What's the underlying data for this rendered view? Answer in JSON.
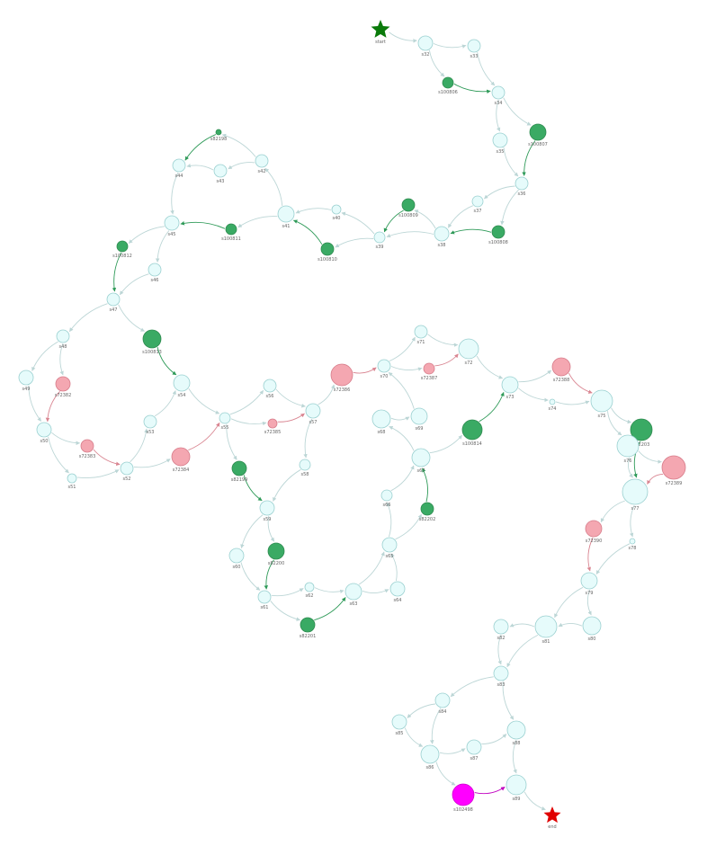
{
  "colors": {
    "state": "#e6fbfb",
    "state_stroke": "#9ad0d0",
    "green": "#3aaa64",
    "green_stroke": "#2e8a4f",
    "pink": "#f4a7b1",
    "pink_stroke": "#d77c8a",
    "magenta": "#ff00ff",
    "start_star": "#0a7a0a",
    "end_star": "#e00000",
    "edge_default": "#bcd6d6",
    "edge_green": "#2e9a58",
    "edge_pink": "#d98591",
    "edge_magenta": "#c000c0"
  },
  "nodes": [
    {
      "id": "start",
      "label": "start",
      "type": "start-star"
    },
    {
      "id": "s32",
      "label": "s32",
      "type": "state"
    },
    {
      "id": "s33",
      "label": "s33",
      "type": "state"
    },
    {
      "id": "s100806",
      "label": "s100806",
      "type": "green"
    },
    {
      "id": "s34",
      "label": "s34",
      "type": "state"
    },
    {
      "id": "s35",
      "label": "s35",
      "type": "state"
    },
    {
      "id": "s100807",
      "label": "s100807",
      "type": "green"
    },
    {
      "id": "s36",
      "label": "s36",
      "type": "state"
    },
    {
      "id": "s37",
      "label": "s37",
      "type": "state"
    },
    {
      "id": "s100808",
      "label": "s100808",
      "type": "green"
    },
    {
      "id": "s38",
      "label": "s38",
      "type": "state"
    },
    {
      "id": "s100809",
      "label": "s100809",
      "type": "green"
    },
    {
      "id": "s39",
      "label": "s39",
      "type": "state"
    },
    {
      "id": "s40",
      "label": "s40",
      "type": "state"
    },
    {
      "id": "s100810",
      "label": "s100810",
      "type": "green"
    },
    {
      "id": "s41",
      "label": "s41",
      "type": "state"
    },
    {
      "id": "s42",
      "label": "s42",
      "type": "state"
    },
    {
      "id": "s82198",
      "label": "s82198",
      "type": "green"
    },
    {
      "id": "s43",
      "label": "s43",
      "type": "state"
    },
    {
      "id": "s44",
      "label": "s44",
      "type": "state"
    },
    {
      "id": "s100811",
      "label": "s100811",
      "type": "green"
    },
    {
      "id": "s45",
      "label": "s45",
      "type": "state"
    },
    {
      "id": "s100812",
      "label": "s100812",
      "type": "green"
    },
    {
      "id": "s46",
      "label": "s46",
      "type": "state"
    },
    {
      "id": "s47",
      "label": "s47",
      "type": "state"
    },
    {
      "id": "s48",
      "label": "s48",
      "type": "state"
    },
    {
      "id": "s49",
      "label": "s49",
      "type": "state"
    },
    {
      "id": "s72382",
      "label": "s72382",
      "type": "pink"
    },
    {
      "id": "s100813",
      "label": "s100813",
      "type": "green"
    },
    {
      "id": "s50",
      "label": "s50",
      "type": "state"
    },
    {
      "id": "s72383",
      "label": "s72383",
      "type": "pink"
    },
    {
      "id": "s51",
      "label": "s51",
      "type": "state"
    },
    {
      "id": "s52",
      "label": "s52",
      "type": "state"
    },
    {
      "id": "s53",
      "label": "s53",
      "type": "state"
    },
    {
      "id": "s54",
      "label": "s54",
      "type": "state"
    },
    {
      "id": "s72384",
      "label": "s72384",
      "type": "pink"
    },
    {
      "id": "s55",
      "label": "s55",
      "type": "state"
    },
    {
      "id": "s56",
      "label": "s56",
      "type": "state"
    },
    {
      "id": "s72385",
      "label": "s72385",
      "type": "pink"
    },
    {
      "id": "s57",
      "label": "s57",
      "type": "state"
    },
    {
      "id": "s72386",
      "label": "s72386",
      "type": "pink"
    },
    {
      "id": "s58",
      "label": "s58",
      "type": "state"
    },
    {
      "id": "s82199",
      "label": "s82199",
      "type": "green"
    },
    {
      "id": "s59",
      "label": "s59",
      "type": "state"
    },
    {
      "id": "s60",
      "label": "s60",
      "type": "state"
    },
    {
      "id": "s82200",
      "label": "s82200",
      "type": "green"
    },
    {
      "id": "s61",
      "label": "s61",
      "type": "state"
    },
    {
      "id": "s62",
      "label": "s62",
      "type": "state"
    },
    {
      "id": "s82201",
      "label": "s82201",
      "type": "green"
    },
    {
      "id": "s63",
      "label": "s63",
      "type": "state"
    },
    {
      "id": "s64",
      "label": "s64",
      "type": "state"
    },
    {
      "id": "s65",
      "label": "s65",
      "type": "state"
    },
    {
      "id": "s66",
      "label": "s66",
      "type": "state"
    },
    {
      "id": "s82202",
      "label": "s82202",
      "type": "green"
    },
    {
      "id": "s67",
      "label": "s67",
      "type": "state"
    },
    {
      "id": "s68",
      "label": "s68",
      "type": "state"
    },
    {
      "id": "s69",
      "label": "s69",
      "type": "state"
    },
    {
      "id": "s70",
      "label": "s70",
      "type": "state"
    },
    {
      "id": "s71",
      "label": "s71",
      "type": "state"
    },
    {
      "id": "s72387",
      "label": "s72387",
      "type": "pink"
    },
    {
      "id": "s72",
      "label": "s72",
      "type": "state"
    },
    {
      "id": "s100814",
      "label": "s100814",
      "type": "green"
    },
    {
      "id": "s73",
      "label": "s73",
      "type": "state"
    },
    {
      "id": "s72388",
      "label": "s72388",
      "type": "pink"
    },
    {
      "id": "s74",
      "label": "s74",
      "type": "state"
    },
    {
      "id": "s75",
      "label": "s75",
      "type": "state"
    },
    {
      "id": "s82203",
      "label": "s82203",
      "type": "green"
    },
    {
      "id": "s76",
      "label": "s76",
      "type": "state"
    },
    {
      "id": "s72389",
      "label": "s72389",
      "type": "pink"
    },
    {
      "id": "s77",
      "label": "s77",
      "type": "state"
    },
    {
      "id": "s72390",
      "label": "s72390",
      "type": "pink"
    },
    {
      "id": "s78",
      "label": "s78",
      "type": "state"
    },
    {
      "id": "s79",
      "label": "s79",
      "type": "state"
    },
    {
      "id": "s80",
      "label": "s80",
      "type": "state"
    },
    {
      "id": "s81",
      "label": "s81",
      "type": "state"
    },
    {
      "id": "s82",
      "label": "s82",
      "type": "state"
    },
    {
      "id": "s83",
      "label": "s83",
      "type": "state"
    },
    {
      "id": "s84",
      "label": "s84",
      "type": "state"
    },
    {
      "id": "s85",
      "label": "s85",
      "type": "state"
    },
    {
      "id": "s86",
      "label": "s86",
      "type": "state"
    },
    {
      "id": "s87",
      "label": "s87",
      "type": "state"
    },
    {
      "id": "s88",
      "label": "s88",
      "type": "state"
    },
    {
      "id": "s102498",
      "label": "s102498",
      "type": "magenta"
    },
    {
      "id": "s89",
      "label": "s89",
      "type": "state"
    },
    {
      "id": "end",
      "label": "end",
      "type": "end-star"
    }
  ],
  "edges": [
    [
      "start",
      "s32",
      "default"
    ],
    [
      "s32",
      "s33",
      "default"
    ],
    [
      "s32",
      "s100806",
      "default"
    ],
    [
      "s33",
      "s34",
      "default"
    ],
    [
      "s100806",
      "s34",
      "green"
    ],
    [
      "s34",
      "s35",
      "default"
    ],
    [
      "s34",
      "s100807",
      "default"
    ],
    [
      "s35",
      "s36",
      "default"
    ],
    [
      "s100807",
      "s36",
      "green"
    ],
    [
      "s36",
      "s37",
      "default"
    ],
    [
      "s36",
      "s100808",
      "default"
    ],
    [
      "s37",
      "s38",
      "default"
    ],
    [
      "s100808",
      "s38",
      "green"
    ],
    [
      "s38",
      "s39",
      "default"
    ],
    [
      "s38",
      "s100809",
      "default"
    ],
    [
      "s100809",
      "s39",
      "green"
    ],
    [
      "s39",
      "s40",
      "default"
    ],
    [
      "s39",
      "s100810",
      "default"
    ],
    [
      "s40",
      "s41",
      "default"
    ],
    [
      "s100810",
      "s41",
      "green"
    ],
    [
      "s41",
      "s42",
      "default"
    ],
    [
      "s41",
      "s100811",
      "default"
    ],
    [
      "s42",
      "s82198",
      "default"
    ],
    [
      "s42",
      "s43",
      "default"
    ],
    [
      "s82198",
      "s44",
      "green"
    ],
    [
      "s43",
      "s44",
      "default"
    ],
    [
      "s44",
      "s45",
      "default"
    ],
    [
      "s100811",
      "s45",
      "green"
    ],
    [
      "s45",
      "s100812",
      "default"
    ],
    [
      "s45",
      "s46",
      "default"
    ],
    [
      "s100812",
      "s47",
      "green"
    ],
    [
      "s46",
      "s47",
      "default"
    ],
    [
      "s47",
      "s48",
      "default"
    ],
    [
      "s47",
      "s100813",
      "default"
    ],
    [
      "s48",
      "s49",
      "default"
    ],
    [
      "s48",
      "s72382",
      "default"
    ],
    [
      "s49",
      "s50",
      "default"
    ],
    [
      "s72382",
      "s50",
      "pink"
    ],
    [
      "s50",
      "s72383",
      "default"
    ],
    [
      "s50",
      "s51",
      "default"
    ],
    [
      "s72383",
      "s52",
      "pink"
    ],
    [
      "s51",
      "s52",
      "default"
    ],
    [
      "s52",
      "s53",
      "default"
    ],
    [
      "s52",
      "s72384",
      "default"
    ],
    [
      "s100813",
      "s54",
      "green"
    ],
    [
      "s53",
      "s54",
      "default"
    ],
    [
      "s54",
      "s55",
      "default"
    ],
    [
      "s72384",
      "s55",
      "pink"
    ],
    [
      "s55",
      "s56",
      "default"
    ],
    [
      "s55",
      "s72385",
      "default"
    ],
    [
      "s55",
      "s82199",
      "default"
    ],
    [
      "s56",
      "s57",
      "default"
    ],
    [
      "s72385",
      "s57",
      "pink"
    ],
    [
      "s57",
      "s72386",
      "default"
    ],
    [
      "s57",
      "s58",
      "default"
    ],
    [
      "s72386",
      "s70",
      "pink"
    ],
    [
      "s58",
      "s59",
      "default"
    ],
    [
      "s82199",
      "s59",
      "green"
    ],
    [
      "s59",
      "s60",
      "default"
    ],
    [
      "s59",
      "s82200",
      "default"
    ],
    [
      "s60",
      "s61",
      "default"
    ],
    [
      "s82200",
      "s61",
      "green"
    ],
    [
      "s61",
      "s62",
      "default"
    ],
    [
      "s61",
      "s82201",
      "default"
    ],
    [
      "s62",
      "s63",
      "default"
    ],
    [
      "s82201",
      "s63",
      "green"
    ],
    [
      "s63",
      "s64",
      "default"
    ],
    [
      "s63",
      "s65",
      "default"
    ],
    [
      "s64",
      "s65",
      "default"
    ],
    [
      "s65",
      "s66",
      "default"
    ],
    [
      "s65",
      "s82202",
      "default"
    ],
    [
      "s66",
      "s67",
      "default"
    ],
    [
      "s82202",
      "s67",
      "green"
    ],
    [
      "s67",
      "s68",
      "default"
    ],
    [
      "s67",
      "s100814",
      "default"
    ],
    [
      "s68",
      "s69",
      "default"
    ],
    [
      "s69",
      "s70",
      "default"
    ],
    [
      "s70",
      "s71",
      "default"
    ],
    [
      "s70",
      "s72387",
      "default"
    ],
    [
      "s71",
      "s72",
      "default"
    ],
    [
      "s72387",
      "s72",
      "pink"
    ],
    [
      "s100814",
      "s73",
      "green"
    ],
    [
      "s72",
      "s73",
      "default"
    ],
    [
      "s73",
      "s72388",
      "default"
    ],
    [
      "s73",
      "s74",
      "default"
    ],
    [
      "s72388",
      "s75",
      "pink"
    ],
    [
      "s74",
      "s75",
      "default"
    ],
    [
      "s75",
      "s82203",
      "default"
    ],
    [
      "s75",
      "s76",
      "default"
    ],
    [
      "s82203",
      "s77",
      "green"
    ],
    [
      "s76",
      "s77",
      "default"
    ],
    [
      "s76",
      "s72389",
      "default"
    ],
    [
      "s72389",
      "s77",
      "pink"
    ],
    [
      "s77",
      "s72390",
      "default"
    ],
    [
      "s77",
      "s78",
      "default"
    ],
    [
      "s72390",
      "s79",
      "pink"
    ],
    [
      "s78",
      "s79",
      "default"
    ],
    [
      "s79",
      "s80",
      "default"
    ],
    [
      "s79",
      "s81",
      "default"
    ],
    [
      "s80",
      "s81",
      "default"
    ],
    [
      "s81",
      "s82",
      "default"
    ],
    [
      "s82",
      "s83",
      "default"
    ],
    [
      "s81",
      "s83",
      "default"
    ],
    [
      "s83",
      "s84",
      "default"
    ],
    [
      "s83",
      "s88",
      "default"
    ],
    [
      "s84",
      "s85",
      "default"
    ],
    [
      "s84",
      "s86",
      "default"
    ],
    [
      "s85",
      "s86",
      "default"
    ],
    [
      "s86",
      "s87",
      "default"
    ],
    [
      "s86",
      "s102498",
      "default"
    ],
    [
      "s87",
      "s88",
      "default"
    ],
    [
      "s88",
      "s89",
      "default"
    ],
    [
      "s102498",
      "s89",
      "magenta"
    ],
    [
      "s89",
      "end",
      "default"
    ]
  ]
}
